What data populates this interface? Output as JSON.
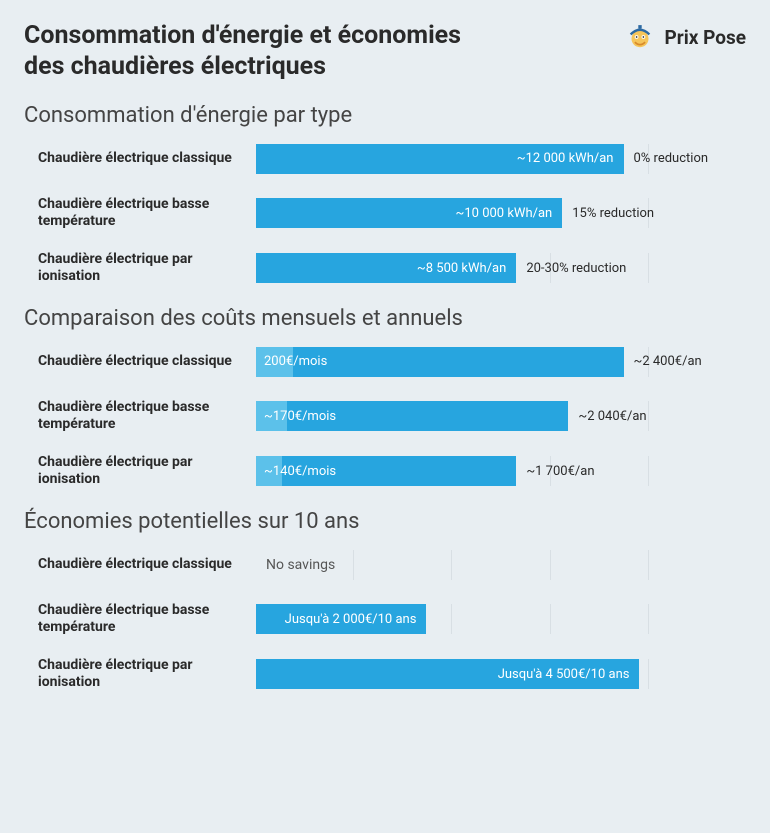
{
  "header": {
    "title": "Consommation d'énergie et économies des chaudières électriques",
    "brand": "Prix Pose"
  },
  "colors": {
    "bar_main": "#27a5df",
    "bar_light": "#5cc1ea",
    "grid": "#d8dfe4",
    "bg": "#e8eef2",
    "text": "#2a2a2a"
  },
  "section1": {
    "title": "Consommation d'énergie par type",
    "grid_cols": 5,
    "bar_track_pct": 75,
    "rows": [
      {
        "label": "Chaudière électrique classique",
        "value": 12000,
        "bar_text": "~12 000 kWh/an",
        "after": "0% reduction"
      },
      {
        "label": "Chaudière électrique basse température",
        "value": 10000,
        "bar_text": "~10 000 kWh/an",
        "after": "15% reduction"
      },
      {
        "label": "Chaudière électrique par ionisation",
        "value": 8500,
        "bar_text": "~8 500 kWh/an",
        "after": "20-30% reduction"
      }
    ],
    "max": 12000
  },
  "section2": {
    "title": "Comparaison des coûts mensuels et annuels",
    "grid_cols": 5,
    "bar_track_pct": 75,
    "rows": [
      {
        "label": "Chaudière électrique classique",
        "annual": 2400,
        "monthly": 200,
        "monthly_text": "200€/mois",
        "after": "~2 400€/an"
      },
      {
        "label": "Chaudière électrique basse température",
        "annual": 2040,
        "monthly": 170,
        "monthly_text": "~170€/mois",
        "after": "~2 040€/an"
      },
      {
        "label": "Chaudière électrique par ionisation",
        "annual": 1700,
        "monthly": 140,
        "monthly_text": "~140€/mois",
        "after": "~1 700€/an"
      }
    ],
    "max": 2400,
    "monthly_scale": 12
  },
  "section3": {
    "title": "Économies potentielles sur 10 ans",
    "grid_cols": 5,
    "bar_track_pct": 100,
    "rows": [
      {
        "label": "Chaudière électrique classique",
        "value": 0,
        "bar_text": "",
        "after": "",
        "no_savings": "No savings"
      },
      {
        "label": "Chaudière électrique basse température",
        "value": 2000,
        "bar_text": "Jusqu'à 2 000€/10 ans",
        "after": ""
      },
      {
        "label": "Chaudière électrique par ionisation",
        "value": 4500,
        "bar_text": "Jusqu'à 4 500€/10 ans",
        "after": ""
      }
    ],
    "max": 5750
  }
}
